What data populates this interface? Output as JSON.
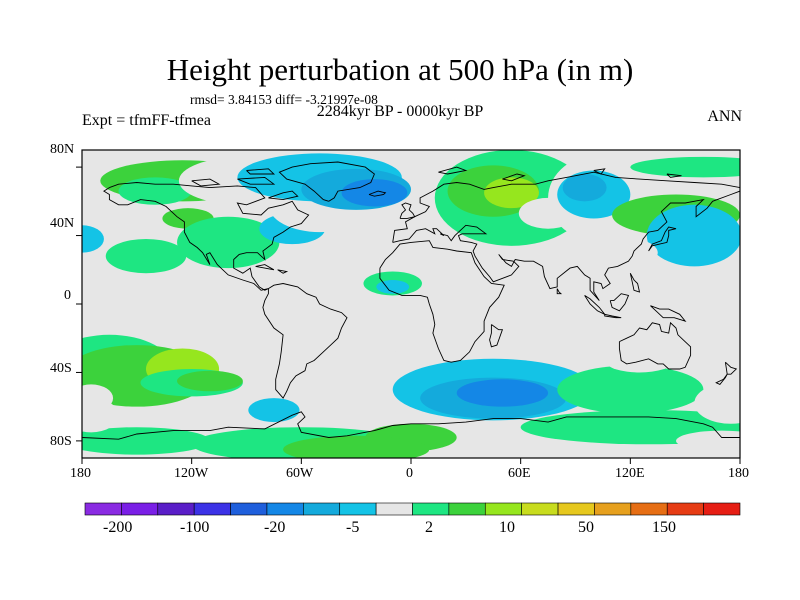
{
  "figure": {
    "title": "Height perturbation at 500 hPa (in m)",
    "stats": "rmsd= 3.84153 diff= -3.21997e-08",
    "period": "2284kyr BP - 0000kyr BP",
    "experiment": "Expt = tfmFF-tfmea",
    "season": "ANN"
  },
  "map": {
    "projection": "cylindrical-equidistant",
    "lon_range": [
      -180,
      180
    ],
    "lat_range": [
      -90,
      90
    ],
    "lon_ticks": [
      "180",
      "120W",
      "60W",
      "0",
      "60E",
      "120E",
      "180"
    ],
    "lat_ticks": [
      "80N",
      "40N",
      "0",
      "40S",
      "80S"
    ],
    "background_color": "#e6e6e6",
    "coastline_color": "#000000"
  },
  "colorbar": {
    "colors": [
      "#8a2be2",
      "#7a1fe6",
      "#5a1ec8",
      "#3c32e6",
      "#1f5fdc",
      "#1487e6",
      "#14aadc",
      "#14c3e6",
      "#e6e6e6",
      "#1ee682",
      "#3cd23c",
      "#96e61e",
      "#c8dc1e",
      "#e6c81e",
      "#e6a01e",
      "#e66e14",
      "#e63c14",
      "#e61e14"
    ],
    "labels": [
      "-200",
      "-100",
      "-20",
      "-5",
      "2",
      "10",
      "50",
      "150"
    ]
  }
}
